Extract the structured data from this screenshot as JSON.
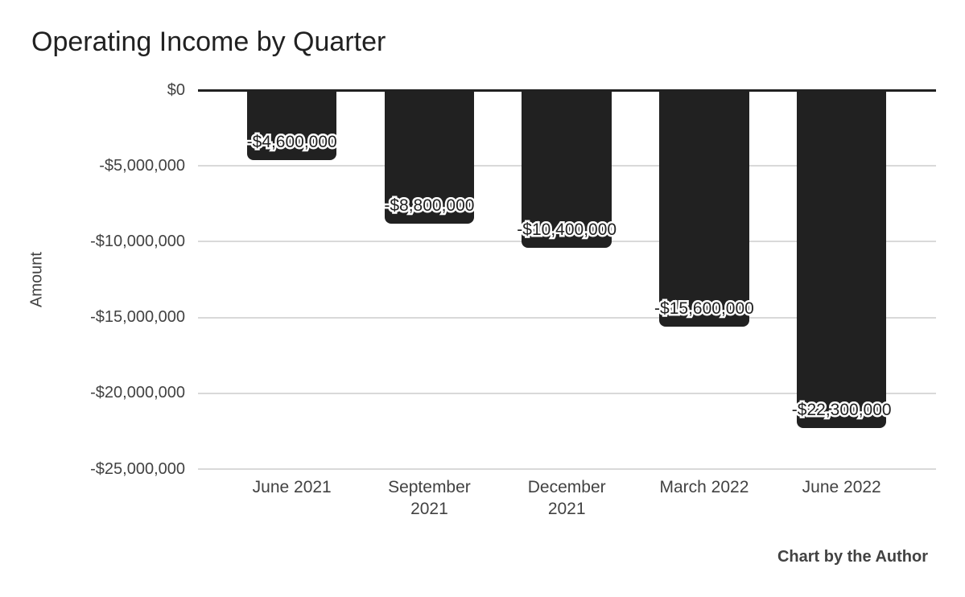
{
  "chart_data": {
    "type": "bar",
    "title": "Operating Income by Quarter",
    "ylabel": "Amount",
    "xlabel": "",
    "categories": [
      "June 2021",
      "September 2021",
      "December 2021",
      "March 2022",
      "June 2022"
    ],
    "values": [
      -4600000,
      -8800000,
      -10400000,
      -15600000,
      -22300000
    ],
    "labels": [
      "-$4,600,000",
      "-$8,800,000",
      "-$10,400,000",
      "-$15,600,000",
      "-$22,300,000"
    ],
    "yticks": [
      {
        "value": 0,
        "label": "$0"
      },
      {
        "value": -5000000,
        "label": "-$5,000,000"
      },
      {
        "value": -10000000,
        "label": "-$10,000,000"
      },
      {
        "value": -15000000,
        "label": "-$15,000,000"
      },
      {
        "value": -20000000,
        "label": "-$20,000,000"
      },
      {
        "value": -25000000,
        "label": "-$25,000,000"
      }
    ],
    "ylim": [
      -25000000,
      0
    ],
    "grid": "horizontal",
    "legend_position": "none",
    "bar_color": "#212121",
    "gridline_color": "#d9d9d9",
    "axis_line_color": "#212121",
    "label_text_color": "#212121",
    "label_outline_color": "#ffffff",
    "tick_text_color": "#424242",
    "background_color": "#ffffff"
  },
  "footer": {
    "credit": "Chart by the Author"
  }
}
